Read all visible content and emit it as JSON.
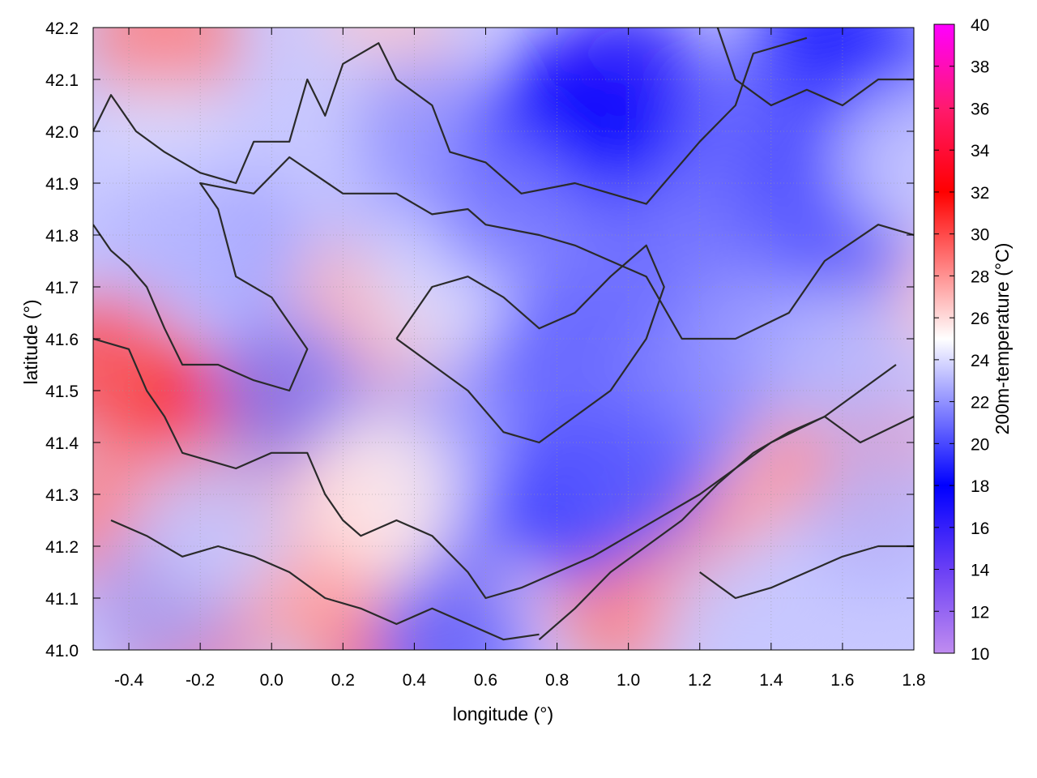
{
  "chart_data": {
    "type": "heatmap",
    "title": "",
    "xlabel": "longitude (°)",
    "ylabel": "latitude (°)",
    "colorbar_label": "200m-temperature (°C)",
    "xlim": [
      -0.5,
      1.8
    ],
    "ylim": [
      41.0,
      42.2
    ],
    "x_ticks": [
      -0.4,
      -0.2,
      0.0,
      0.2,
      0.4,
      0.6,
      0.8,
      1.0,
      1.2,
      1.4,
      1.6,
      1.8
    ],
    "x_tick_labels": [
      "-0.4",
      "-0.2",
      "0.0",
      "0.2",
      "0.4",
      "0.6",
      "0.8",
      "1.0",
      "1.2",
      "1.4",
      "1.6",
      "1.8"
    ],
    "y_ticks": [
      41.0,
      41.1,
      41.2,
      41.3,
      41.4,
      41.5,
      41.6,
      41.7,
      41.8,
      41.9,
      42.0,
      42.1,
      42.2
    ],
    "y_tick_labels": [
      "41.0",
      "41.1",
      "41.2",
      "41.3",
      "41.4",
      "41.5",
      "41.6",
      "41.7",
      "41.8",
      "41.9",
      "42.0",
      "42.1",
      "42.2"
    ],
    "colorbar_range": [
      10,
      40
    ],
    "colorbar_ticks": [
      10,
      12,
      14,
      16,
      18,
      20,
      22,
      24,
      26,
      28,
      30,
      32,
      34,
      36,
      38,
      40
    ],
    "colorbar_tick_labels": [
      "10",
      "12",
      "14",
      "16",
      "18",
      "20",
      "22",
      "24",
      "26",
      "28",
      "30",
      "32",
      "34",
      "36",
      "38",
      "40"
    ],
    "colormap": [
      {
        "value": 10,
        "color": "#c08cf0"
      },
      {
        "value": 14,
        "color": "#6a3ff5"
      },
      {
        "value": 18,
        "color": "#0000ff"
      },
      {
        "value": 25,
        "color": "#ffffff"
      },
      {
        "value": 32,
        "color": "#ff0000"
      },
      {
        "value": 36,
        "color": "#ff1a6e"
      },
      {
        "value": 40,
        "color": "#ff00ff"
      }
    ],
    "grid": true,
    "contour_color": "#2a2a2a",
    "regions": [
      {
        "lon": -0.45,
        "lat": 41.55,
        "temp": 30.0
      },
      {
        "lon": -0.45,
        "lat": 41.25,
        "temp": 28.5
      },
      {
        "lon": -0.15,
        "lat": 41.43,
        "temp": 31.5
      },
      {
        "lon": 0.0,
        "lat": 41.41,
        "temp": 31.0
      },
      {
        "lon": 0.1,
        "lat": 41.45,
        "temp": 32.5
      },
      {
        "lon": 0.2,
        "lat": 41.35,
        "temp": 28.0
      },
      {
        "lon": -0.25,
        "lat": 41.05,
        "temp": 29.5
      },
      {
        "lon": 0.3,
        "lat": 41.05,
        "temp": 29.5
      },
      {
        "lon": 0.1,
        "lat": 41.15,
        "temp": 27.5
      },
      {
        "lon": 0.35,
        "lat": 41.55,
        "temp": 27.5
      },
      {
        "lon": 0.2,
        "lat": 41.65,
        "temp": 27.0
      },
      {
        "lon": -0.3,
        "lat": 42.18,
        "temp": 28.5
      },
      {
        "lon": 0.3,
        "lat": 42.15,
        "temp": 26.5
      },
      {
        "lon": 1.15,
        "lat": 41.2,
        "temp": 28.5
      },
      {
        "lon": 1.0,
        "lat": 41.1,
        "temp": 28.5
      },
      {
        "lon": 1.45,
        "lat": 41.38,
        "temp": 27.5
      },
      {
        "lon": 1.65,
        "lat": 41.35,
        "temp": 28.5
      },
      {
        "lon": 1.75,
        "lat": 41.7,
        "temp": 26.5
      },
      {
        "lon": 0.5,
        "lat": 41.1,
        "temp": 26.0
      },
      {
        "lon": -0.3,
        "lat": 41.95,
        "temp": 24.0
      },
      {
        "lon": 0.05,
        "lat": 41.95,
        "temp": 23.5
      },
      {
        "lon": -0.1,
        "lat": 41.78,
        "temp": 22.5
      },
      {
        "lon": -0.3,
        "lat": 41.8,
        "temp": 23.0
      },
      {
        "lon": 0.4,
        "lat": 41.85,
        "temp": 23.0
      },
      {
        "lon": 0.5,
        "lat": 41.7,
        "temp": 24.0
      },
      {
        "lon": 0.15,
        "lat": 42.05,
        "temp": 23.5
      },
      {
        "lon": 0.45,
        "lat": 42.0,
        "temp": 22.0
      },
      {
        "lon": 0.85,
        "lat": 42.05,
        "temp": 17.0
      },
      {
        "lon": 1.0,
        "lat": 42.1,
        "temp": 16.5
      },
      {
        "lon": 0.95,
        "lat": 41.95,
        "temp": 17.5
      },
      {
        "lon": 0.75,
        "lat": 41.95,
        "temp": 18.0
      },
      {
        "lon": 1.55,
        "lat": 42.15,
        "temp": 18.0
      },
      {
        "lon": 1.7,
        "lat": 42.1,
        "temp": 19.0
      },
      {
        "lon": 1.35,
        "lat": 42.0,
        "temp": 20.5
      },
      {
        "lon": 1.45,
        "lat": 41.85,
        "temp": 20.0
      },
      {
        "lon": 1.6,
        "lat": 41.8,
        "temp": 20.5
      },
      {
        "lon": 1.2,
        "lat": 41.8,
        "temp": 21.0
      },
      {
        "lon": 0.9,
        "lat": 41.75,
        "temp": 21.0
      },
      {
        "lon": 0.8,
        "lat": 41.55,
        "temp": 20.5
      },
      {
        "lon": 0.7,
        "lat": 41.45,
        "temp": 21.0
      },
      {
        "lon": 1.0,
        "lat": 41.6,
        "temp": 21.0
      },
      {
        "lon": 1.15,
        "lat": 41.45,
        "temp": 21.5
      },
      {
        "lon": 1.35,
        "lat": 41.6,
        "temp": 22.0
      },
      {
        "lon": 0.6,
        "lat": 41.3,
        "temp": 21.0
      },
      {
        "lon": 0.85,
        "lat": 41.28,
        "temp": 19.5
      },
      {
        "lon": 1.0,
        "lat": 41.33,
        "temp": 20.5
      },
      {
        "lon": 0.45,
        "lat": 41.4,
        "temp": 22.5
      },
      {
        "lon": 0.05,
        "lat": 41.5,
        "temp": 21.5
      },
      {
        "lon": -0.3,
        "lat": 41.1,
        "temp": 22.5
      },
      {
        "lon": -0.15,
        "lat": 41.25,
        "temp": 23.5
      },
      {
        "lon": 0.5,
        "lat": 41.02,
        "temp": 20.5
      },
      {
        "lon": 1.5,
        "lat": 41.1,
        "temp": 23.5
      },
      {
        "lon": 1.3,
        "lat": 41.05,
        "temp": 23.5
      },
      {
        "lon": 1.6,
        "lat": 41.55,
        "temp": 23.0
      },
      {
        "lon": 1.7,
        "lat": 41.25,
        "temp": 23.0
      },
      {
        "lon": 1.8,
        "lat": 41.95,
        "temp": 23.5
      },
      {
        "lon": 0.65,
        "lat": 41.85,
        "temp": 21.5
      },
      {
        "lon": 0.3,
        "lat": 41.3,
        "temp": 25.5
      }
    ],
    "contours": [
      [
        [
          -0.5,
          42.0
        ],
        [
          -0.45,
          42.07
        ],
        [
          -0.38,
          42.0
        ],
        [
          -0.3,
          41.96
        ],
        [
          -0.2,
          41.92
        ],
        [
          -0.1,
          41.9
        ],
        [
          -0.05,
          41.98
        ],
        [
          0.05,
          41.98
        ],
        [
          0.1,
          42.1
        ],
        [
          0.15,
          42.03
        ],
        [
          0.2,
          42.13
        ],
        [
          0.3,
          42.17
        ],
        [
          0.35,
          42.1
        ],
        [
          0.45,
          42.05
        ],
        [
          0.5,
          41.96
        ],
        [
          0.6,
          41.94
        ],
        [
          0.7,
          41.88
        ],
        [
          0.85,
          41.9
        ],
        [
          0.95,
          41.88
        ],
        [
          1.05,
          41.86
        ],
        [
          1.2,
          41.98
        ],
        [
          1.3,
          42.05
        ],
        [
          1.35,
          42.15
        ],
        [
          1.5,
          42.18
        ]
      ],
      [
        [
          -0.5,
          41.82
        ],
        [
          -0.45,
          41.77
        ],
        [
          -0.4,
          41.74
        ],
        [
          -0.35,
          41.7
        ],
        [
          -0.3,
          41.62
        ],
        [
          -0.25,
          41.55
        ],
        [
          -0.15,
          41.55
        ],
        [
          -0.05,
          41.52
        ],
        [
          0.05,
          41.5
        ],
        [
          0.1,
          41.58
        ],
        [
          0.0,
          41.68
        ],
        [
          -0.1,
          41.72
        ],
        [
          -0.15,
          41.85
        ],
        [
          -0.2,
          41.9
        ],
        [
          -0.05,
          41.88
        ],
        [
          0.05,
          41.95
        ],
        [
          0.2,
          41.88
        ],
        [
          0.35,
          41.88
        ],
        [
          0.45,
          41.84
        ],
        [
          0.55,
          41.85
        ],
        [
          0.6,
          41.82
        ],
        [
          0.75,
          41.8
        ],
        [
          0.85,
          41.78
        ],
        [
          0.95,
          41.75
        ],
        [
          1.05,
          41.72
        ],
        [
          1.15,
          41.6
        ],
        [
          1.3,
          41.6
        ],
        [
          1.45,
          41.65
        ],
        [
          1.55,
          41.75
        ],
        [
          1.7,
          41.82
        ],
        [
          1.8,
          41.8
        ]
      ],
      [
        [
          -0.5,
          41.6
        ],
        [
          -0.4,
          41.58
        ],
        [
          -0.35,
          41.5
        ],
        [
          -0.3,
          41.45
        ],
        [
          -0.25,
          41.38
        ],
        [
          -0.1,
          41.35
        ],
        [
          0.0,
          41.38
        ],
        [
          0.1,
          41.38
        ],
        [
          0.15,
          41.3
        ],
        [
          0.2,
          41.25
        ],
        [
          0.25,
          41.22
        ],
        [
          0.35,
          41.25
        ],
        [
          0.45,
          41.22
        ],
        [
          0.55,
          41.15
        ],
        [
          0.6,
          41.1
        ],
        [
          0.7,
          41.12
        ],
        [
          0.8,
          41.15
        ],
        [
          0.9,
          41.18
        ],
        [
          1.0,
          41.22
        ],
        [
          1.1,
          41.26
        ],
        [
          1.2,
          41.3
        ],
        [
          1.3,
          41.35
        ],
        [
          1.4,
          41.4
        ],
        [
          1.55,
          41.45
        ],
        [
          1.65,
          41.4
        ],
        [
          1.8,
          41.45
        ]
      ],
      [
        [
          -0.45,
          41.25
        ],
        [
          -0.35,
          41.22
        ],
        [
          -0.25,
          41.18
        ],
        [
          -0.15,
          41.2
        ],
        [
          -0.05,
          41.18
        ],
        [
          0.05,
          41.15
        ],
        [
          0.15,
          41.1
        ],
        [
          0.25,
          41.08
        ],
        [
          0.35,
          41.05
        ],
        [
          0.45,
          41.08
        ],
        [
          0.55,
          41.05
        ],
        [
          0.65,
          41.02
        ],
        [
          0.75,
          41.03
        ]
      ],
      [
        [
          0.75,
          41.02
        ],
        [
          0.85,
          41.08
        ],
        [
          0.95,
          41.15
        ],
        [
          1.05,
          41.2
        ],
        [
          1.15,
          41.25
        ],
        [
          1.25,
          41.32
        ],
        [
          1.35,
          41.38
        ],
        [
          1.45,
          41.42
        ],
        [
          1.55,
          41.45
        ],
        [
          1.65,
          41.5
        ],
        [
          1.75,
          41.55
        ]
      ],
      [
        [
          0.35,
          41.6
        ],
        [
          0.45,
          41.55
        ],
        [
          0.55,
          41.5
        ],
        [
          0.65,
          41.42
        ],
        [
          0.75,
          41.4
        ],
        [
          0.85,
          41.45
        ],
        [
          0.95,
          41.5
        ],
        [
          1.05,
          41.6
        ],
        [
          1.1,
          41.7
        ],
        [
          1.05,
          41.78
        ],
        [
          0.95,
          41.72
        ],
        [
          0.85,
          41.65
        ],
        [
          0.75,
          41.62
        ],
        [
          0.65,
          41.68
        ],
        [
          0.55,
          41.72
        ],
        [
          0.45,
          41.7
        ],
        [
          0.35,
          41.6
        ]
      ],
      [
        [
          1.25,
          42.2
        ],
        [
          1.3,
          42.1
        ],
        [
          1.4,
          42.05
        ],
        [
          1.5,
          42.08
        ],
        [
          1.6,
          42.05
        ],
        [
          1.7,
          42.1
        ],
        [
          1.8,
          42.1
        ]
      ],
      [
        [
          1.2,
          41.15
        ],
        [
          1.3,
          41.1
        ],
        [
          1.4,
          41.12
        ],
        [
          1.5,
          41.15
        ],
        [
          1.6,
          41.18
        ],
        [
          1.7,
          41.2
        ],
        [
          1.8,
          41.2
        ]
      ]
    ]
  }
}
